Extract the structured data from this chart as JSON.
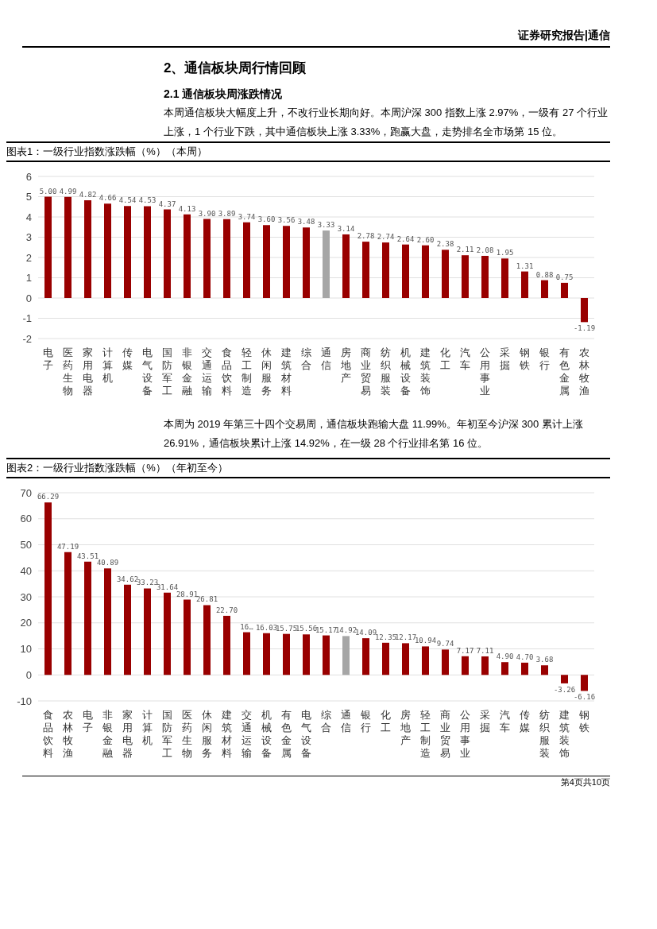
{
  "chart_data": [
    {
      "type": "bar",
      "title": "图表1：一级行业指数涨跌幅（%）（本周）",
      "annotations": [
        "证券研究报告|通信",
        "2、通信板块周行情回顾",
        "2.1 通信板块周涨跌情况",
        "本周通信板块大幅度上升，不改行业长期向好。本周沪深 300 指数上涨 2.97%，一级有 27 个行业上涨，1 个行业下跌，其中通信板块上涨 3.33%，跑赢大盘，走势排名全市场第 15 位。"
      ],
      "categories": [
        "电子",
        "医药生物",
        "家用电器",
        "计算机",
        "传媒",
        "电气设备",
        "国防军工",
        "非银金融",
        "交通运输",
        "食品饮料",
        "轻工制造",
        "休闲服务",
        "建筑材料",
        "综合",
        "通信",
        "房地产",
        "商业贸易",
        "纺织服装",
        "机械设备",
        "建筑装饰",
        "化工",
        "汽车",
        "公用事业",
        "采掘",
        "钢铁",
        "银行",
        "有色金属",
        "农林牧渔"
      ],
      "values": [
        5.0,
        4.99,
        4.82,
        4.66,
        4.54,
        4.53,
        4.37,
        4.13,
        3.9,
        3.89,
        3.74,
        3.6,
        3.56,
        3.48,
        3.33,
        3.14,
        2.78,
        2.74,
        2.64,
        2.6,
        2.38,
        2.11,
        2.08,
        1.95,
        1.31,
        0.88,
        0.75,
        -1.19
      ],
      "colors": [
        "#990000",
        "#990000",
        "#990000",
        "#990000",
        "#990000",
        "#990000",
        "#990000",
        "#990000",
        "#990000",
        "#990000",
        "#990000",
        "#990000",
        "#990000",
        "#990000",
        "#a6a6a6",
        "#990000",
        "#990000",
        "#990000",
        "#990000",
        "#990000",
        "#990000",
        "#990000",
        "#990000",
        "#990000",
        "#990000",
        "#990000",
        "#990000",
        "#990000"
      ],
      "value_labels": [
        "5.00",
        "4.99",
        "4.82",
        "4.66",
        "4.54",
        "4.53",
        "4.37",
        "4.13",
        "3.90",
        "3.89",
        "3.74",
        "3.60",
        "3.56",
        "3.48",
        "3.33",
        "3.14",
        "2.78",
        "2.74",
        "2.64",
        "2.60",
        "2.38",
        "2.11",
        "2.08",
        "1.95",
        "1.31",
        "0.88",
        "0.75",
        "-1.19"
      ],
      "ylim": [
        -2,
        6
      ],
      "yticks": [
        -2,
        -1,
        0,
        1,
        2,
        3,
        4,
        5,
        6
      ],
      "grid": "y",
      "legend": false
    },
    {
      "type": "bar",
      "title": "图表2：一级行业指数涨跌幅（%）（年初至今）",
      "annotations": [
        "本周为 2019 年第三十四个交易周，通信板块跑输大盘 11.99%。年初至今沪深 300 累计上涨 26.91%，通信板块累计上涨 14.92%，在一级 28 个行业排名第 16 位。",
        "第4页共10页"
      ],
      "categories": [
        "食品饮料",
        "农林牧渔",
        "电子",
        "非银金融",
        "家用电器",
        "计算机",
        "国防军工",
        "医药生物",
        "休闲服务",
        "建筑材料",
        "交通运输",
        "机械设备",
        "有色金属",
        "电气设备",
        "综合",
        "通信",
        "银行",
        "化工",
        "房地产",
        "轻工制造",
        "商业贸易",
        "公用事业",
        "采掘",
        "汽车",
        "传媒",
        "纺织服装",
        "建筑装饰",
        "钢铁"
      ],
      "values": [
        66.29,
        47.19,
        43.51,
        40.89,
        34.62,
        33.23,
        31.64,
        28.91,
        26.81,
        22.7,
        16.4,
        16.03,
        15.75,
        15.56,
        15.17,
        14.92,
        14.09,
        12.35,
        12.17,
        10.94,
        9.74,
        7.17,
        7.11,
        4.9,
        4.7,
        3.68,
        -3.26,
        -6.16
      ],
      "value_labels": [
        "66.29",
        "47.19",
        "43.51",
        "40.89",
        "34.62",
        "33.23",
        "31.64",
        "28.91",
        "26.81",
        "22.70",
        "16…",
        "16.03",
        "15.75",
        "15.56",
        "15.17",
        "14.92",
        "14.09",
        "12.35",
        "12.17",
        "10.94",
        "9.74",
        "7.17",
        "7.11",
        "4.90",
        "4.70",
        "3.68",
        "-3.26",
        "-6.16"
      ],
      "colors": [
        "#990000",
        "#990000",
        "#990000",
        "#990000",
        "#990000",
        "#990000",
        "#990000",
        "#990000",
        "#990000",
        "#990000",
        "#990000",
        "#990000",
        "#990000",
        "#990000",
        "#990000",
        "#a6a6a6",
        "#990000",
        "#990000",
        "#990000",
        "#990000",
        "#990000",
        "#990000",
        "#990000",
        "#990000",
        "#990000",
        "#990000",
        "#990000",
        "#990000"
      ],
      "ylim": [
        -10,
        70
      ],
      "yticks": [
        -10,
        0,
        10,
        20,
        30,
        40,
        50,
        60,
        70
      ],
      "grid": "y",
      "legend": false
    }
  ]
}
